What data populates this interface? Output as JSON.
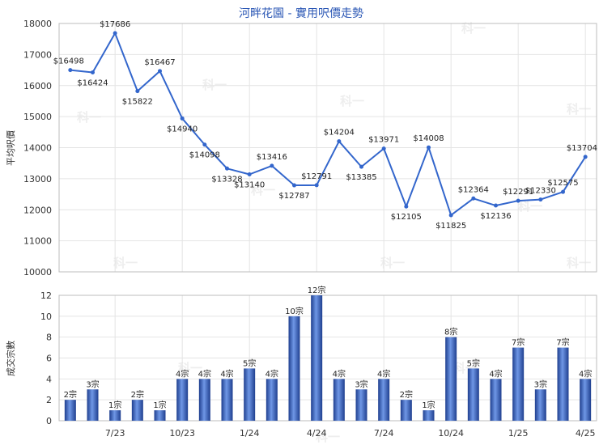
{
  "chart_data": [
    {
      "type": "line",
      "title": "河畔花園 - 實用呎價走勢",
      "ylabel": "平均呎價",
      "ylim": [
        10000,
        18000
      ],
      "yticks": [
        "10000",
        "11000",
        "12000",
        "13000",
        "14000",
        "15000",
        "16000",
        "17000",
        "18000"
      ],
      "values": [
        16498,
        16424,
        17686,
        15822,
        16467,
        14940,
        14098,
        13328,
        13140,
        13416,
        12787,
        12791,
        14204,
        13385,
        13971,
        12105,
        14008,
        11825,
        12364,
        12136,
        12291,
        12330,
        12575,
        13704
      ],
      "point_labels": [
        "$16498",
        "$16424",
        "$17686",
        "$15822",
        "$16467",
        "$14940",
        "$14098",
        "$13328",
        "$13140",
        "$13416",
        "$12787",
        "$12791",
        "$14204",
        "$13385",
        "$13971",
        "$12105",
        "$14008",
        "$11825",
        "$12364",
        "$12136",
        "$12291",
        "$12330",
        "$12575",
        "$13704"
      ],
      "color": "#3366cc",
      "grid": true
    },
    {
      "type": "bar",
      "ylabel": "成交宗數",
      "ylim": [
        0,
        12
      ],
      "yticks": [
        "0",
        "2",
        "4",
        "6",
        "8",
        "10",
        "12"
      ],
      "values": [
        2,
        3,
        1,
        2,
        1,
        4,
        4,
        4,
        5,
        4,
        10,
        12,
        4,
        3,
        4,
        2,
        1,
        8,
        5,
        4,
        7,
        3,
        7,
        4
      ],
      "bar_labels": [
        "2宗",
        "3宗",
        "1宗",
        "2宗",
        "1宗",
        "4宗",
        "4宗",
        "4宗",
        "5宗",
        "4宗",
        "10宗",
        "12宗",
        "4宗",
        "3宗",
        "4宗",
        "2宗",
        "1宗",
        "8宗",
        "5宗",
        "4宗",
        "7宗",
        "3宗",
        "7宗",
        "4宗"
      ],
      "x_tick_labels": [
        "7/23",
        "10/23",
        "1/24",
        "4/24",
        "7/24",
        "10/24",
        "1/25",
        "4/25"
      ],
      "color": "#3366cc",
      "grid": true
    }
  ],
  "watermark": "科一"
}
